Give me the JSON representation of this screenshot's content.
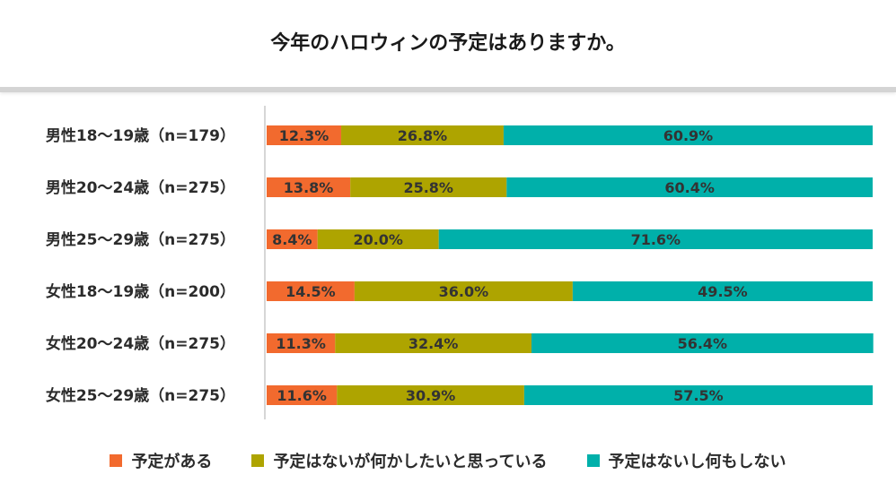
{
  "chart_data": {
    "type": "bar",
    "orientation": "horizontal",
    "stacked": true,
    "title": "今年のハロウィンの予定はありますか。",
    "categories": [
      "男性18～19歳（n=179）",
      "男性20～24歳（n=275）",
      "男性25～29歳（n=275）",
      "女性18～19歳（n=200）",
      "女性20～24歳（n=275）",
      "女性25～29歳（n=275）"
    ],
    "series": [
      {
        "name": "予定がある",
        "color": "#f26a2e",
        "values": [
          12.3,
          13.8,
          8.4,
          14.5,
          11.3,
          11.6
        ],
        "labels": [
          "12.3%",
          "13.8%",
          "8.4%",
          "14.5%",
          "11.3%",
          "11.6%"
        ]
      },
      {
        "name": "予定はないが何かしたいと思っている",
        "color": "#aea400",
        "values": [
          26.8,
          25.8,
          20.0,
          36.0,
          32.4,
          30.9
        ],
        "labels": [
          "26.8%",
          "25.8%",
          "20.0%",
          "36.0%",
          "32.4%",
          "30.9%"
        ]
      },
      {
        "name": "予定はないし何もしない",
        "color": "#00b0aa",
        "values": [
          60.9,
          60.4,
          71.6,
          49.5,
          56.4,
          57.5
        ],
        "labels": [
          "60.9%",
          "60.4%",
          "71.6%",
          "49.5%",
          "56.4%",
          "57.5%"
        ]
      }
    ],
    "xlim": [
      0,
      100
    ],
    "unit": "%",
    "legend_position": "bottom",
    "grid": false
  }
}
